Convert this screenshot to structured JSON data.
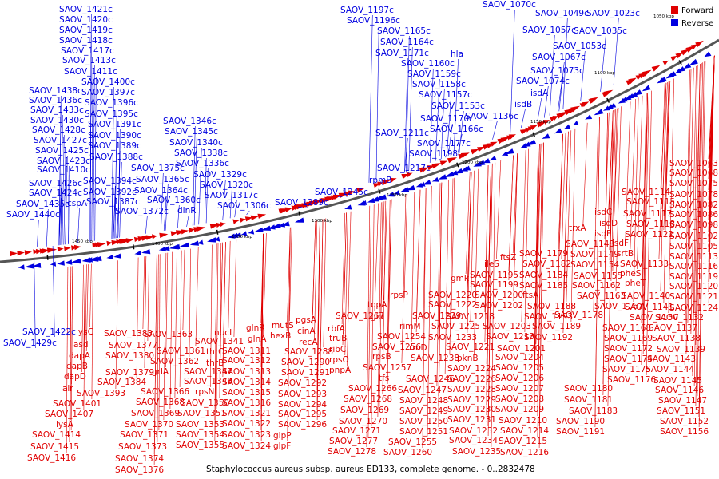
{
  "legend": {
    "forward": "Forward",
    "reverse": "Reverse"
  },
  "colors": {
    "forward": "#e00000",
    "reverse": "#0000e0"
  },
  "caption": "Staphylococcus aureus subsp. aureus ED133, complete genome. - 0..2832478",
  "ticks": [
    "1050 kbp",
    "1100 kbp",
    "1150 kbp",
    "1200 kbp",
    "1250 kbp",
    "1300 kbp",
    "1350 kbp",
    "1400 kbp",
    "1450 kbp"
  ],
  "reverse_labels": [
    "SAOV_1421c",
    "SAOV_1420c",
    "SAOV_1419c",
    "SAOV_1418c",
    "SAOV_1417c",
    "SAOV_1413c",
    "SAOV_1411c",
    "SAOV_1400c",
    "SAOV_1397c",
    "SAOV_1396c",
    "SAOV_1395c",
    "SAOV_1391c",
    "SAOV_1390c",
    "SAOV_1389c",
    "SAOV_1388c",
    "SAOV_1394c",
    "SAOV_1392c",
    "SAOV_1387c",
    "SAOV_1438c",
    "SAOV_1436c",
    "SAOV_1433c",
    "SAOV_1430c",
    "SAOV_1428c",
    "SAOV_1427c",
    "SAOV_1425c",
    "SAOV_1423c",
    "SAOV_1410c",
    "SAOV_1426c",
    "SAOV_1424c",
    "SAOV_1435c",
    "SAOV_1440c",
    "cspA",
    "SAOV_1375c",
    "SAOV_1365c",
    "SAOV_1364c",
    "SAOV_1360c",
    "SAOV_1372c",
    "dinR",
    "SAOV_1346c",
    "SAOV_1345c",
    "SAOV_1340c",
    "SAOV_1338c",
    "SAOV_1336c",
    "SAOV_1329c",
    "SAOV_1320c",
    "SAOV_1317c",
    "SAOV_1306c",
    "SAOV_1289c",
    "SAOV_1245c",
    "rpmB",
    "SAOV_1217c",
    "SAOV_1211c",
    "SAOV_1198c",
    "SAOV_1177c",
    "SAOV_1166c",
    "SAOV_1170c",
    "SAOV_1136c",
    "SAOV_1153c",
    "SAOV_1157c",
    "SAOV_1158c",
    "SAOV_1159c",
    "SAOV_1160c",
    "hla",
    "SAOV_1171c",
    "SAOV_1164c",
    "SAOV_1165c",
    "SAOV_1196c",
    "SAOV_1197c",
    "isdB",
    "isdA",
    "SAOV_1074c",
    "SAOV_1073c",
    "SAOV_1067c",
    "SAOV_1053c",
    "SAOV_1057c",
    "SAOV_1035c",
    "SAOV_1049c",
    "SAOV_1023c",
    "SAOV_1070c",
    "SAOV_1422c",
    "SAOV_1429c"
  ],
  "forward_labels": [
    "lysC",
    "asd",
    "dapA",
    "dapB",
    "dapD",
    "alr",
    "SAOV_1401",
    "SAOV_1407",
    "lysA",
    "SAOV_1414",
    "SAOV_1415",
    "SAOV_1416",
    "SAOV_1393",
    "SAOV_1383",
    "SAOV_1377",
    "SAOV_1380",
    "SAOV_1379",
    "SAOV_1384",
    "SAOV_1368",
    "SAOV_1369",
    "SAOV_1370",
    "SAOV_1371",
    "SAOV_1373",
    "SAOV_1374",
    "SAOV_1376",
    "SAOV_1366",
    "grlA",
    "SAOV_1362",
    "SAOV_1361",
    "SAOV_1363",
    "thrC",
    "thrB",
    "SAOV_1347",
    "SAOV_1348",
    "rpsN",
    "SAOV_1350",
    "SAOV_1351",
    "SAOV_1353",
    "SAOV_1354",
    "SAOV_1355",
    "nucI",
    "SAOV_1341",
    "glnR",
    "glnA",
    "SAOV_1311",
    "SAOV_1312",
    "SAOV_1313",
    "SAOV_1314",
    "SAOV_1315",
    "SAOV_1316",
    "SAOV_1321",
    "SAOV_1322",
    "SAOV_1323",
    "SAOV_1324",
    "mutS",
    "hexB",
    "pgsA",
    "cinA",
    "recA",
    "SAOV_1288",
    "SAOV_1290",
    "SAOV_1291",
    "SAOV_1292",
    "SAOV_1293",
    "SAOV_1294",
    "SAOV_1295",
    "SAOV_1296",
    "glpP",
    "glpF",
    "rbfA",
    "truB",
    "ribC",
    "rpsO",
    "pnpA",
    "SAOV_1267",
    "topA",
    "gid",
    "SAOV_1239",
    "rpsP",
    "rimM",
    "trmD",
    "SAOV_1254",
    "SAOV_1256",
    "rpsB",
    "tfs",
    "SAOV_1257",
    "SAOV_1266",
    "SAOV_1268",
    "SAOV_1269",
    "SAOV_1270",
    "SAOV_1271",
    "SAOV_1277",
    "SAOV_1278",
    "SAOV_1238",
    "SAOV_1246",
    "SAOV_1247",
    "SAOV_1248",
    "SAOV_1249",
    "SAOV_1250",
    "SAOV_1251",
    "SAOV_1255",
    "SAOV_1260",
    "SAOV_1233",
    "SAOV_1225",
    "SAOV_1222",
    "SAOV_1220",
    "SAOV_1218",
    "SAOV_1221",
    "pknB",
    "SAOV_1224",
    "SAOV_1226",
    "SAOV_1228",
    "SAOV_1229",
    "SAOV_1230",
    "SAOV_1231",
    "SAOV_1232",
    "SAOV_1234",
    "SAOV_1235",
    "gmk",
    "SAOV_1195",
    "SAOV_1199",
    "SAOV_1200",
    "SAOV_1202",
    "SAOV_1203",
    "SAOV_1213",
    "SAOV_1201",
    "SAOV_1204",
    "SAOV_1205",
    "SAOV_1206",
    "SAOV_1207",
    "SAOV_1208",
    "SAOV_1209",
    "SAOV_1210",
    "SAOV_1214",
    "SAOV_1215",
    "SAOV_1216",
    "ileS",
    "ftsZ",
    "SAOV_1179",
    "SAOV_1182",
    "SAOV_1184",
    "SAOV_1185",
    "ftsA",
    "SAOV_1188",
    "SAOV_1193",
    "SAOV_1189",
    "SAOV_1192",
    "SAOV_1190",
    "SAOV_1191",
    "SAOV_1178",
    "SAOV_1180",
    "SAOV_1181",
    "SAOV_1183",
    "trxA",
    "SAOV_1148",
    "SAOV_1149",
    "SAOV_1154",
    "SAOV_1155",
    "SAOV_1162",
    "SAOV_1163",
    "SAOV_1167",
    "SAOV_1168",
    "SAOV_1169",
    "SAOV_1172",
    "SAOV_1174",
    "SAOV_1175",
    "SAOV_1176",
    "isdC",
    "isdD",
    "isdE",
    "isdF",
    "srtB",
    "pheS",
    "pheT",
    "SAOV_1133",
    "SAOV_1140",
    "SAOV_1141",
    "SAOV_1150",
    "SAOV_1114",
    "SAOV_1115",
    "SAOV_1117",
    "SAOV_1118",
    "SAOV_1122",
    "SAOV_1063",
    "SAOV_1068",
    "SAOV_1075",
    "SAOV_1078",
    "SAOV_1082",
    "SAOV_1086",
    "SAOV_1098",
    "SAOV_1102",
    "SAOV_1105",
    "SAOV_1113",
    "SAOV_1116",
    "SAOV_1119",
    "SAOV_1120",
    "SAOV_1121",
    "SAOV_1124",
    "SAOV_1132",
    "SAOV_1137",
    "SAOV_1138",
    "SAOV_1139",
    "SAOV_1143",
    "SAOV_1144",
    "SAOV_1145",
    "SAOV_1146",
    "SAOV_1147",
    "SAOV_1151",
    "SAOV_1152",
    "SAOV_1156"
  ]
}
